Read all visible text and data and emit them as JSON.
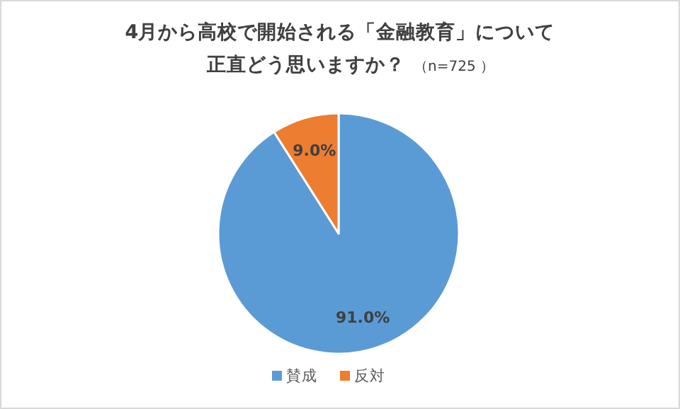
{
  "chart_data": {
    "type": "pie",
    "title": "4月から高校で開始される「金融教育」について",
    "subtitle": "正直どう思いますか？",
    "annotations": [
      "（n=725 ）"
    ],
    "categories": [
      "賛成",
      "反対"
    ],
    "values": [
      91.0,
      9.0
    ],
    "colors": [
      "#5b9bd5",
      "#ed7d31"
    ],
    "value_labels": [
      "91.0%",
      "9.0%"
    ],
    "legend": "bottom"
  }
}
